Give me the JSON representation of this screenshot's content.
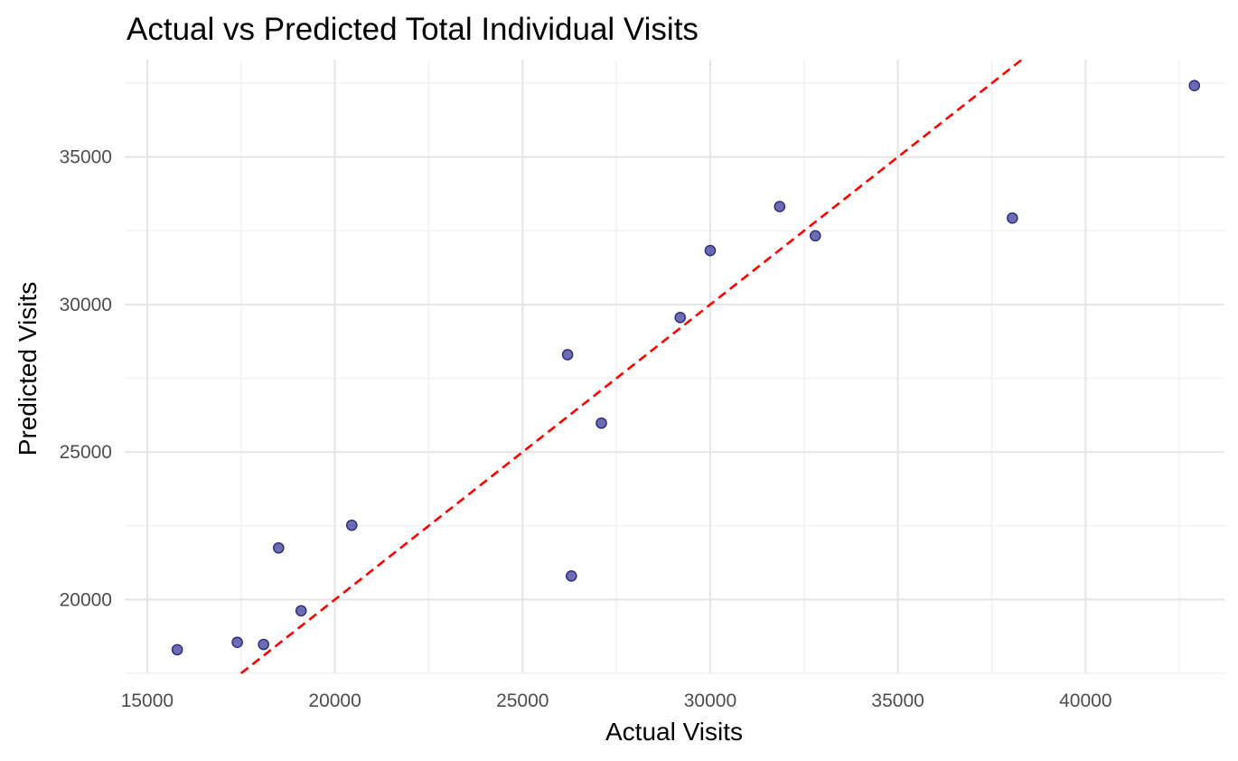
{
  "chart_data": {
    "type": "scatter",
    "title": "Actual vs Predicted Total Individual Visits",
    "xlabel": "Actual Visits",
    "ylabel": "Predicted Visits",
    "xlim": [
      14400,
      43700
    ],
    "ylim": [
      17500,
      38300
    ],
    "x_ticks": [
      15000,
      20000,
      25000,
      30000,
      35000,
      40000
    ],
    "x_tick_labels": [
      "15000",
      "20000",
      "25000",
      "30000",
      "35000",
      "40000"
    ],
    "y_ticks": [
      20000,
      25000,
      30000,
      35000
    ],
    "y_tick_labels": [
      "20000",
      "25000",
      "30000",
      "35000"
    ],
    "grid": true,
    "reference_line": {
      "slope": 1,
      "intercept": 0,
      "color": "#ff0000",
      "style": "dashed"
    },
    "point_color": "#3b3b9a",
    "series": [
      {
        "points": [
          {
            "x": 15800,
            "y": 18300
          },
          {
            "x": 17400,
            "y": 18550
          },
          {
            "x": 18100,
            "y": 18480
          },
          {
            "x": 18500,
            "y": 21750
          },
          {
            "x": 19100,
            "y": 19620
          },
          {
            "x": 20450,
            "y": 22520
          },
          {
            "x": 26200,
            "y": 28300
          },
          {
            "x": 26300,
            "y": 20800
          },
          {
            "x": 27100,
            "y": 25980
          },
          {
            "x": 29200,
            "y": 29560
          },
          {
            "x": 30000,
            "y": 31830
          },
          {
            "x": 31850,
            "y": 33320
          },
          {
            "x": 32800,
            "y": 32330
          },
          {
            "x": 38050,
            "y": 32930
          },
          {
            "x": 42900,
            "y": 37420
          }
        ]
      }
    ]
  }
}
